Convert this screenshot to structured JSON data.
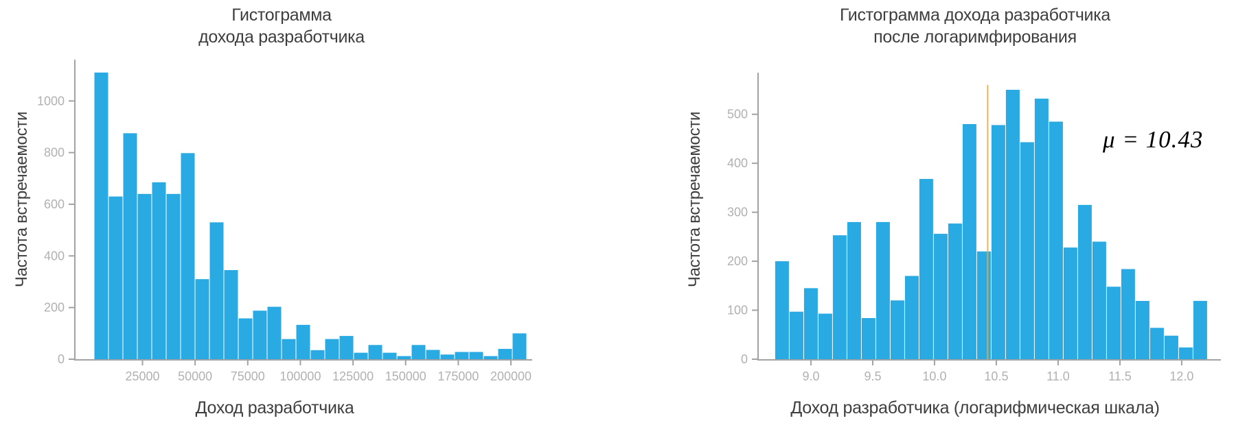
{
  "style": {
    "background": "#ffffff",
    "axis_color": "#a2a2a2",
    "tick_label_color": "#b1b1b1",
    "text_color": "#3e3e3e",
    "annotation_text_color": "#000000"
  },
  "chart_data": [
    {
      "type": "bar",
      "subtype": "histogram",
      "title": "Гистограмма\nдохода разработчика",
      "xlabel": "Доход разработчика",
      "ylabel": "Частота встречаемости",
      "bar_color": "#29aae2",
      "grid": false,
      "legend": false,
      "bin_start": 2000,
      "bin_width": 6850,
      "values": [
        1110,
        630,
        875,
        640,
        685,
        640,
        798,
        310,
        530,
        345,
        158,
        188,
        203,
        78,
        133,
        35,
        78,
        90,
        25,
        55,
        25,
        12,
        55,
        36,
        18,
        28,
        28,
        12,
        40,
        100
      ],
      "x_ticks": [
        25000,
        50000,
        75000,
        100000,
        125000,
        150000,
        175000,
        200000
      ],
      "x_tick_labels": [
        "25000",
        "50000",
        "75000",
        "100000",
        "125000",
        "150000",
        "175000",
        "200000"
      ],
      "y_ticks": [
        0,
        200,
        400,
        600,
        800,
        1000
      ],
      "y_tick_labels": [
        "0",
        "200",
        "400",
        "600",
        "800",
        "1000"
      ],
      "x_axis_range": [
        -6800,
        210100
      ],
      "y_axis_range": [
        0,
        1160
      ]
    },
    {
      "type": "bar",
      "subtype": "histogram",
      "title": "Гистограмма дохода разработчика\nпосле логаримфирования",
      "xlabel": "Доход разработчика (логарифмическая шкала)",
      "ylabel": "Частота встречаемости",
      "bar_color": "#29aae2",
      "grid": false,
      "legend": false,
      "bin_start": 8.708,
      "bin_width": 0.11667,
      "values": [
        200,
        97,
        145,
        93,
        253,
        280,
        84,
        280,
        120,
        170,
        368,
        256,
        277,
        480,
        220,
        478,
        550,
        443,
        532,
        485,
        228,
        315,
        240,
        148,
        184,
        119,
        64,
        48,
        24,
        119
      ],
      "x_ticks": [
        9.0,
        9.5,
        10.0,
        10.5,
        11.0,
        11.5,
        12.0
      ],
      "x_tick_labels": [
        "9.0",
        "9.5",
        "10.0",
        "10.5",
        "11.0",
        "11.5",
        "12.0"
      ],
      "y_ticks": [
        0,
        100,
        200,
        300,
        400,
        500
      ],
      "y_tick_labels": [
        "0",
        "100",
        "200",
        "300",
        "400",
        "500"
      ],
      "x_axis_range": [
        8.578,
        12.317
      ],
      "y_axis_range": [
        0,
        585
      ],
      "annotation": {
        "label": "μ = 10.43",
        "mean_value": 10.43,
        "line_color": "#f4a63b",
        "line_top_value": 560
      }
    }
  ]
}
